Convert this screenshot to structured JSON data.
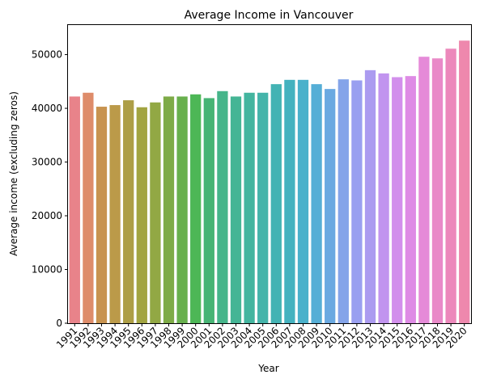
{
  "chart_data": {
    "type": "bar",
    "title": "Average Income in Vancouver",
    "xlabel": "Year",
    "ylabel": "Average income (excluding zeros)",
    "ylim": [
      0,
      55500
    ],
    "yticks": [
      0,
      10000,
      20000,
      30000,
      40000,
      50000
    ],
    "grid": false,
    "legend": "none",
    "categories": [
      "1991",
      "1992",
      "1993",
      "1994",
      "1995",
      "1996",
      "1997",
      "1998",
      "1999",
      "2000",
      "2001",
      "2002",
      "2003",
      "2004",
      "2005",
      "2006",
      "2007",
      "2008",
      "2009",
      "2010",
      "2011",
      "2012",
      "2013",
      "2014",
      "2015",
      "2016",
      "2017",
      "2018",
      "2019",
      "2020"
    ],
    "values": [
      42200,
      42900,
      40300,
      40600,
      41500,
      40200,
      41100,
      42200,
      42200,
      42600,
      41900,
      43200,
      42200,
      42900,
      42900,
      44500,
      45300,
      45300,
      44500,
      43600,
      45400,
      45200,
      47100,
      46500,
      45800,
      46000,
      49600,
      49300,
      51100,
      52600
    ],
    "colors": [
      "#e8838a",
      "#de8c6a",
      "#c8934f",
      "#bb9a49",
      "#ad9e46",
      "#a2a441",
      "#92a844",
      "#7eab47",
      "#68b04d",
      "#4db756",
      "#47b474",
      "#45b58a",
      "#44b595",
      "#43b59f",
      "#44b4aa",
      "#43b3b4",
      "#44b2bf",
      "#4ab1cb",
      "#55aed6",
      "#6aa9e1",
      "#84a4e9",
      "#999ff0",
      "#ab9bf0",
      "#c194ef",
      "#d28fec",
      "#de8be5",
      "#e58ad8",
      "#e98ac8",
      "#ec88bb",
      "#ee88ad"
    ]
  }
}
